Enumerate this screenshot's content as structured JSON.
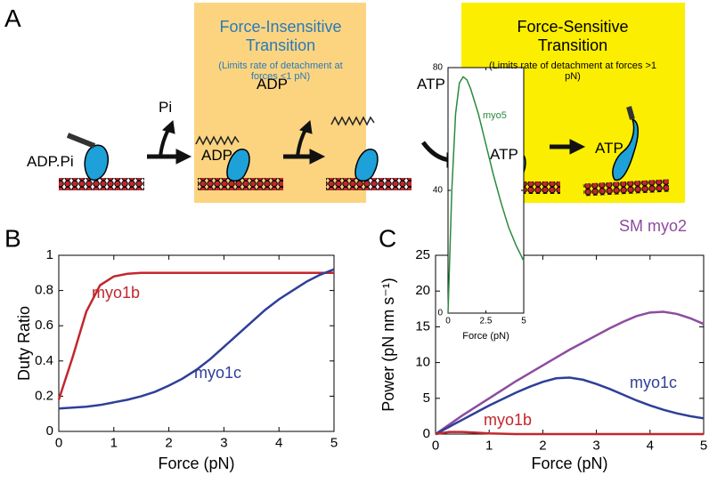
{
  "panel_a": {
    "label": "A",
    "boxes": [
      {
        "title": "Force-Insensitive Transition",
        "note": "(Limits rate of detachment at forces <1 pN)"
      },
      {
        "title": "Force-Sensitive Transition",
        "note": "(Limits rate of detachment at forces >1 pN)"
      }
    ],
    "labels": [
      "ADP.Pi",
      "Pi",
      "ADP",
      "ADP",
      "ATP",
      "ATP",
      "ATP"
    ]
  },
  "chart_data": [
    {
      "type": "line",
      "panel_label": "B",
      "x_label": "Force (pN)",
      "y_label": "Duty Ratio",
      "xlim": [
        0,
        5
      ],
      "ylim": [
        0,
        1
      ],
      "xticks": [
        0,
        1,
        2,
        3,
        4,
        5
      ],
      "yticks": [
        0,
        0.2,
        0.4,
        0.6,
        0.8,
        1
      ],
      "x": [
        0,
        0.25,
        0.5,
        0.75,
        1,
        1.25,
        1.5,
        1.75,
        2,
        2.25,
        2.5,
        2.75,
        3,
        3.25,
        3.5,
        3.75,
        4,
        4.25,
        4.5,
        4.75,
        5
      ],
      "series": [
        {
          "name": "myo1b",
          "color": "#c1272d",
          "values": [
            0.18,
            0.42,
            0.68,
            0.83,
            0.88,
            0.895,
            0.9,
            0.9,
            0.9,
            0.9,
            0.9,
            0.9,
            0.9,
            0.9,
            0.9,
            0.9,
            0.9,
            0.9,
            0.9,
            0.9,
            0.9
          ]
        },
        {
          "name": "myo1c",
          "color": "#2e3f98",
          "values": [
            0.13,
            0.135,
            0.14,
            0.15,
            0.165,
            0.18,
            0.2,
            0.225,
            0.26,
            0.3,
            0.35,
            0.41,
            0.48,
            0.55,
            0.62,
            0.69,
            0.75,
            0.8,
            0.85,
            0.89,
            0.92
          ]
        }
      ]
    },
    {
      "type": "line",
      "panel_label": "C",
      "x_label": "Force (pN)",
      "y_label": "Power (pN nm s⁻¹)",
      "xlim": [
        0,
        5
      ],
      "ylim": [
        0,
        25
      ],
      "xticks": [
        0,
        1,
        2,
        3,
        4,
        5
      ],
      "yticks": [
        0,
        5,
        10,
        15,
        20,
        25
      ],
      "x": [
        0,
        0.25,
        0.5,
        0.75,
        1,
        1.25,
        1.5,
        1.75,
        2,
        2.25,
        2.5,
        2.75,
        3,
        3.25,
        3.5,
        3.75,
        4,
        4.25,
        4.5,
        4.75,
        5
      ],
      "series": [
        {
          "name": "SM myo2",
          "color": "#8e4b9e",
          "values": [
            0,
            1.3,
            2.6,
            3.8,
            5,
            6.2,
            7.4,
            8.5,
            9.6,
            10.7,
            11.8,
            12.8,
            13.8,
            14.8,
            15.7,
            16.5,
            17,
            17.1,
            16.8,
            16.2,
            15.4
          ]
        },
        {
          "name": "myo1c",
          "color": "#2e3f98",
          "values": [
            0,
            1,
            2,
            3,
            4,
            4.9,
            5.8,
            6.6,
            7.3,
            7.8,
            7.9,
            7.6,
            7,
            6.3,
            5.5,
            4.7,
            4,
            3.4,
            2.9,
            2.5,
            2.2
          ]
        },
        {
          "name": "myo1b",
          "color": "#c1272d",
          "values": [
            0,
            0.3,
            0.3,
            0.2,
            0.1,
            0.05,
            0,
            0,
            0,
            0,
            0,
            0,
            0,
            0,
            0,
            0,
            0,
            0,
            0,
            0,
            0
          ]
        }
      ]
    },
    {
      "type": "line",
      "x_label": "Force (pN)",
      "xlim": [
        0,
        5
      ],
      "ylim": [
        0,
        80
      ],
      "xticks": [
        0,
        2.5,
        5
      ],
      "yticks": [
        0,
        40,
        80
      ],
      "x": [
        0,
        0.25,
        0.5,
        0.75,
        1,
        1.25,
        1.5,
        2,
        2.5,
        3,
        3.5,
        4,
        4.5,
        5
      ],
      "series": [
        {
          "name": "myo5",
          "color": "#2a8a3e",
          "values": [
            0,
            40,
            65,
            75,
            77,
            76,
            73,
            65,
            55,
            45,
            36,
            28,
            22,
            17
          ]
        }
      ]
    }
  ]
}
